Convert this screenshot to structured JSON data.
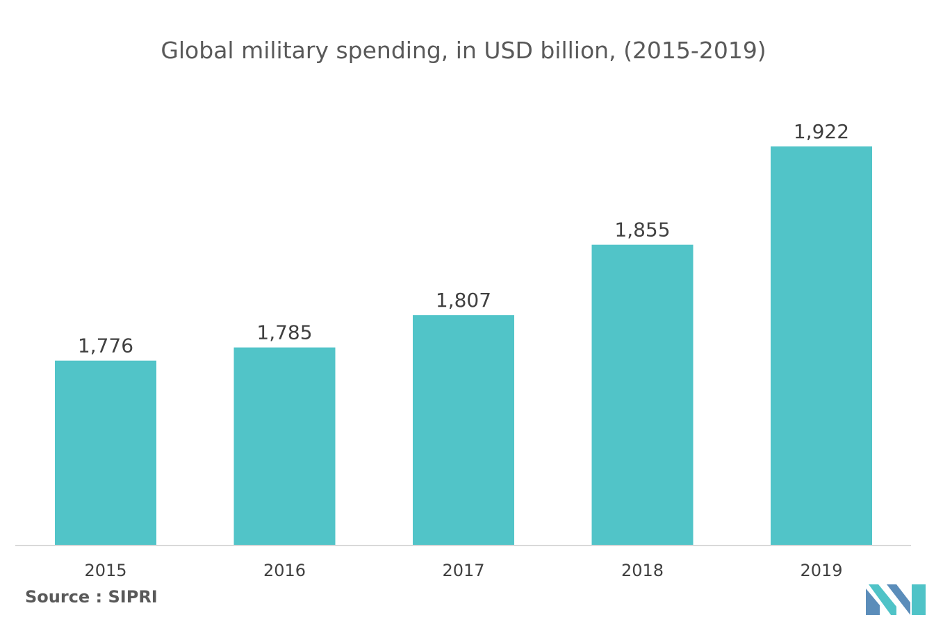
{
  "chart_data": {
    "type": "bar",
    "title": "Global military spending, in USD billion, (2015-2019)",
    "categories": [
      "2015",
      "2016",
      "2017",
      "2018",
      "2019"
    ],
    "values": [
      1776,
      1785,
      1807,
      1855,
      1922
    ],
    "value_labels": [
      "1,776",
      "1,785",
      "1,807",
      "1,855",
      "1,922"
    ],
    "xlabel": "",
    "ylabel": "",
    "ylim": [
      1650,
      1950
    ],
    "grid": false,
    "legend": "none",
    "bar_color": "#51C4C8",
    "axis_color": "#D9D9D9"
  },
  "footer": {
    "source": "Source : SIPRI"
  },
  "logo": {
    "icon": "mordor-intelligence-logo-icon",
    "colors": [
      "#5B8DBA",
      "#4FC3C7"
    ]
  }
}
